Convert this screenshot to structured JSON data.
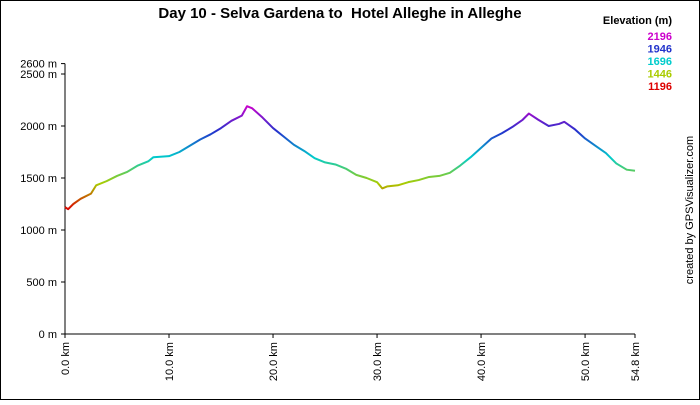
{
  "chart_data": {
    "type": "line",
    "title": "Day 10 - Selva Gardena to  Hotel Alleghe in Alleghe",
    "side_note": "created by GPSVisualizer.com",
    "color_scale_title": "Elevation (m)",
    "color_scale": [
      {
        "value": 2196,
        "color": "#cc00cc"
      },
      {
        "value": 1946,
        "color": "#2233cc"
      },
      {
        "value": 1696,
        "color": "#00cccc"
      },
      {
        "value": 1446,
        "color": "#aacc00"
      },
      {
        "value": 1196,
        "color": "#dd0000"
      }
    ],
    "x": [
      0,
      0.3,
      0.8,
      1.5,
      2.5,
      3.0,
      4,
      5,
      6,
      7,
      8,
      8.5,
      10,
      11,
      12,
      13,
      14,
      15,
      16,
      17,
      17.5,
      18,
      19,
      20,
      21,
      22,
      23,
      24,
      25,
      26,
      27,
      28,
      29,
      30,
      30.5,
      31,
      32,
      33,
      34,
      35,
      36,
      37,
      38,
      39,
      40,
      41,
      42,
      43,
      44,
      44.6,
      45.5,
      46.5,
      47.5,
      48,
      49,
      50,
      51,
      52,
      53,
      54,
      54.8
    ],
    "y": [
      1220,
      1200,
      1250,
      1300,
      1350,
      1430,
      1470,
      1520,
      1560,
      1620,
      1660,
      1700,
      1710,
      1750,
      1810,
      1870,
      1920,
      1980,
      2050,
      2100,
      2190,
      2170,
      2080,
      1980,
      1900,
      1820,
      1760,
      1690,
      1650,
      1630,
      1590,
      1530,
      1500,
      1460,
      1400,
      1420,
      1430,
      1460,
      1480,
      1510,
      1520,
      1550,
      1620,
      1700,
      1790,
      1880,
      1930,
      1990,
      2060,
      2120,
      2060,
      2000,
      2020,
      2040,
      1970,
      1880,
      1810,
      1740,
      1640,
      1580,
      1570
    ],
    "xlim": [
      0,
      54.8
    ],
    "ylim": [
      0,
      2600
    ],
    "xticks": [
      {
        "value": 0,
        "label": "0.0 km"
      },
      {
        "value": 10,
        "label": "10.0 km"
      },
      {
        "value": 20,
        "label": "20.0 km"
      },
      {
        "value": 30,
        "label": "30.0 km"
      },
      {
        "value": 40,
        "label": "40.0 km"
      },
      {
        "value": 50,
        "label": "50.0 km"
      },
      {
        "value": 54.8,
        "label": "54.8 km"
      }
    ],
    "yticks": [
      {
        "value": 0,
        "label": "0 m"
      },
      {
        "value": 500,
        "label": "500 m"
      },
      {
        "value": 1000,
        "label": "1000 m"
      },
      {
        "value": 1500,
        "label": "1500 m"
      },
      {
        "value": 2000,
        "label": "2000 m"
      },
      {
        "value": 2500,
        "label": "2500 m"
      },
      {
        "value": 2600,
        "label": "2600 m"
      }
    ]
  }
}
